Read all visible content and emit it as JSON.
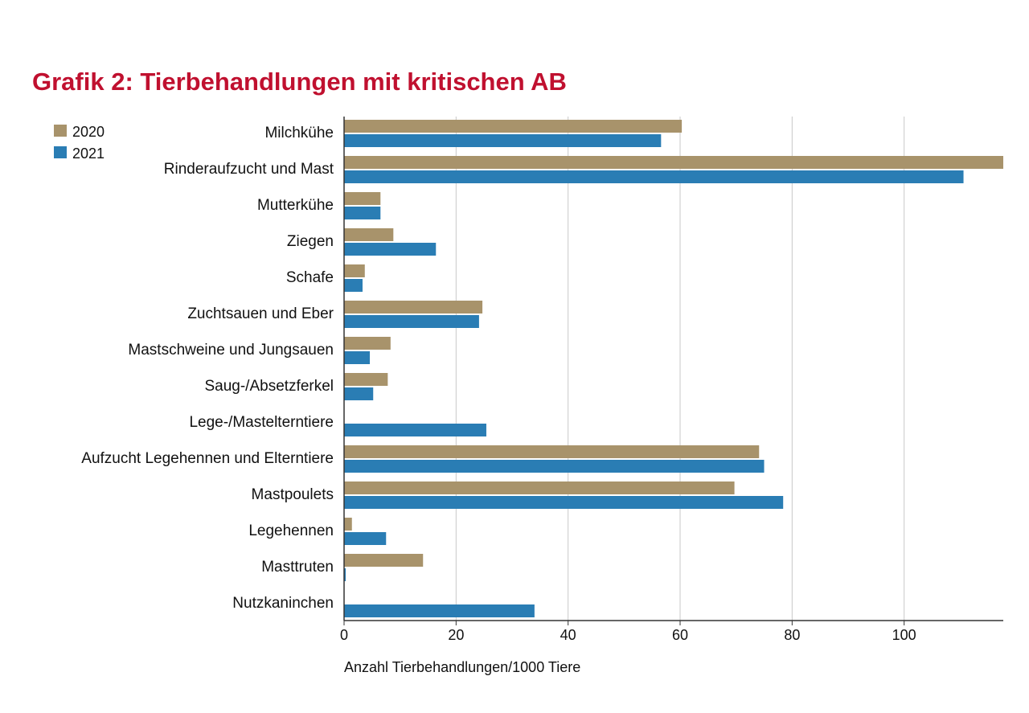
{
  "chart_data": {
    "type": "bar",
    "orientation": "horizontal",
    "title": "Grafik 2: Tierbehandlungen mit kritischen AB",
    "xlabel": "Anzahl Tierbehandlungen/1000 Tiere",
    "ylabel": "",
    "xlim": [
      0,
      117.7
    ],
    "xticks": [
      "0",
      "20",
      "40",
      "60",
      "80",
      "100"
    ],
    "grid": "vertical",
    "legend_position": "top-left",
    "categories": [
      "Milchkühe",
      "Rinderaufzucht und Mast",
      "Mutterkühe",
      "Ziegen",
      "Schafe",
      "Zuchtsauen und Eber",
      "Mastschweine und Jungsauen",
      "Saug-/Absetzferkel",
      "Lege-/Mastelterntiere",
      "Aufzucht Legehennen und Elterntiere",
      "Mastpoulets",
      "Legehennen",
      "Masttruten",
      "Nutzkaninchen"
    ],
    "series": [
      {
        "name": "2020",
        "color": "#a8936b",
        "values": [
          60.3,
          118,
          6.5,
          8.8,
          3.7,
          24.7,
          8.3,
          7.8,
          0,
          74.1,
          69.7,
          1.4,
          14.1,
          0
        ]
      },
      {
        "name": "2021",
        "color": "#2a7db4",
        "values": [
          56.6,
          110.6,
          6.5,
          16.4,
          3.3,
          24.1,
          4.6,
          5.2,
          25.4,
          75.0,
          78.4,
          7.5,
          0.3,
          34.0
        ]
      }
    ]
  }
}
